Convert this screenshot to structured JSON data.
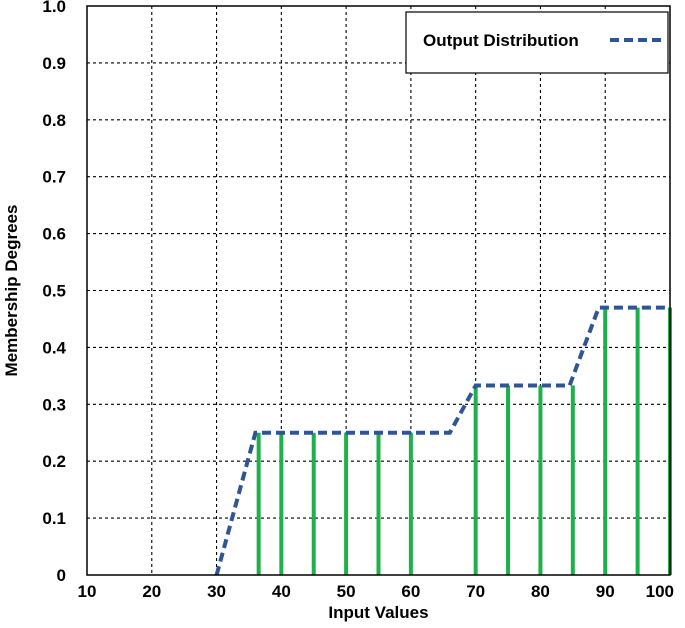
{
  "chart_data": {
    "type": "line",
    "title": "",
    "xlabel": "Input Values",
    "ylabel": "Membership Degrees",
    "xlim": [
      10,
      100
    ],
    "ylim": [
      0,
      1.0
    ],
    "x_ticks": [
      10,
      20,
      30,
      40,
      50,
      60,
      70,
      80,
      90,
      100
    ],
    "y_ticks": [
      0,
      0.1,
      0.2,
      0.3,
      0.4,
      0.5,
      0.6,
      0.7,
      0.8,
      0.9,
      1.0
    ],
    "y_tick_labels": [
      "0",
      "0.1",
      "0.2",
      "0.3",
      "0.4",
      "0.5",
      "0.6",
      "0.7",
      "0.8",
      "0.9",
      "1.0"
    ],
    "grid": true,
    "legend": {
      "position": "top-right",
      "entries": [
        "Output Distribution"
      ]
    },
    "series": [
      {
        "name": "Output Distribution",
        "style": "dashed",
        "color": "#2E5597",
        "points": [
          [
            30,
            0
          ],
          [
            36,
            0.25
          ],
          [
            66,
            0.25
          ],
          [
            70,
            0.333
          ],
          [
            84.5,
            0.333
          ],
          [
            89,
            0.47
          ],
          [
            100,
            0.47
          ]
        ]
      }
    ],
    "stems": {
      "color": "#1DB04B",
      "x": [
        36.5,
        40,
        45,
        50,
        55,
        60,
        70,
        75,
        80,
        85,
        90,
        95,
        100
      ],
      "values": [
        0.25,
        0.25,
        0.25,
        0.25,
        0.25,
        0.25,
        0.333,
        0.333,
        0.333,
        0.333,
        0.47,
        0.47,
        0.47
      ]
    }
  }
}
